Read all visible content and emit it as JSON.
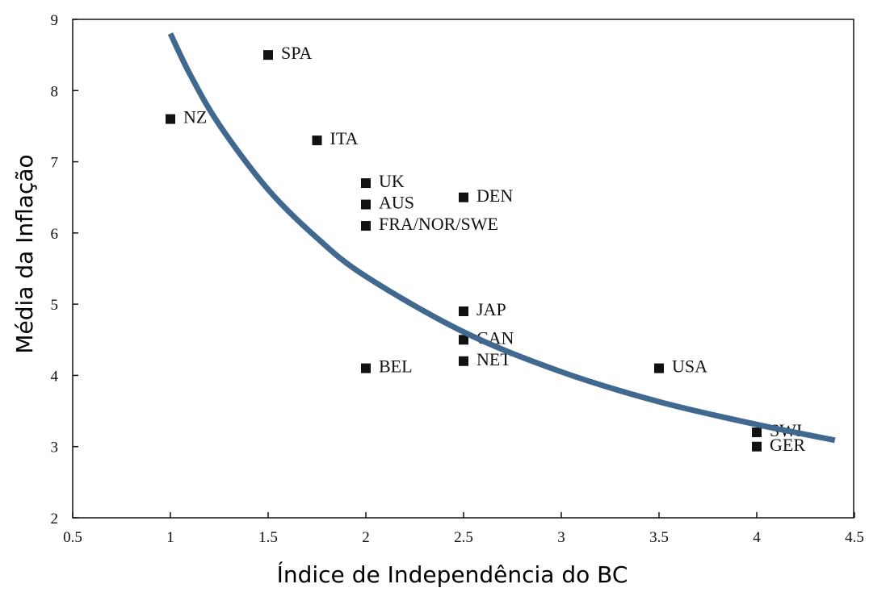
{
  "chart_data": {
    "type": "scatter",
    "xlabel": "Índice de Independência do BC",
    "ylabel": "Média da Inflação",
    "xlim": [
      0.5,
      4.5
    ],
    "ylim": [
      2,
      9
    ],
    "xticks": [
      0.5,
      1,
      1.5,
      2,
      2.5,
      3,
      3.5,
      4,
      4.5
    ],
    "yticks": [
      2,
      3,
      4,
      5,
      6,
      7,
      8,
      9
    ],
    "color": "#111111",
    "labels": [
      "NZ",
      "SPA",
      "ITA",
      "UK",
      "AUS",
      "FRA/NOR/SWE",
      "BEL",
      "DEN",
      "JAP",
      "CAN",
      "NET",
      "USA",
      "SWI",
      "GER"
    ],
    "x": [
      1,
      1.5,
      1.75,
      2,
      2,
      2,
      2,
      2.5,
      2.5,
      2.5,
      2.5,
      3.5,
      4,
      4
    ],
    "values": [
      7.6,
      8.5,
      7.3,
      6.7,
      6.4,
      6.1,
      4.1,
      6.5,
      4.9,
      4.5,
      4.2,
      4.1,
      3.2,
      3.0
    ],
    "fit": {
      "color": "#41698f",
      "x": [
        1,
        1.1,
        1.25,
        1.5,
        1.75,
        2,
        2.5,
        3,
        3.5,
        4,
        4.4
      ],
      "values": [
        8.8,
        8.23,
        7.52,
        6.61,
        5.93,
        5.39,
        4.61,
        4.05,
        3.63,
        3.31,
        3.09
      ]
    }
  }
}
